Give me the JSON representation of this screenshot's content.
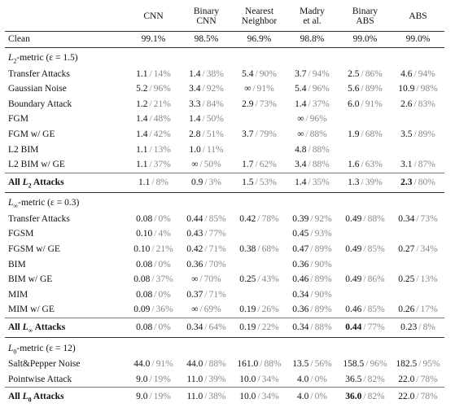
{
  "header": {
    "columns": [
      [
        "CNN"
      ],
      [
        "Binary",
        "CNN"
      ],
      [
        "Nearest",
        "Neighbor"
      ],
      [
        "Madry",
        "et al."
      ],
      [
        "Binary",
        "ABS"
      ],
      [
        "ABS"
      ]
    ]
  },
  "clean": {
    "label": "Clean",
    "values": [
      "99.1%",
      "98.5%",
      "96.9%",
      "98.8%",
      "99.0%",
      "99.0%"
    ]
  },
  "sections": [
    {
      "title": {
        "symbol": "L",
        "subscript": "2",
        "text": "-metric (ε = 1.5)"
      },
      "rows": [
        {
          "label": "Transfer Attacks",
          "cells": [
            {
              "v": "1.1",
              "p": "14%"
            },
            {
              "v": "1.4",
              "p": "38%"
            },
            {
              "v": "5.4",
              "p": "90%"
            },
            {
              "v": "3.7",
              "p": "94%"
            },
            {
              "v": "2.5",
              "p": "86%"
            },
            {
              "v": "4.6",
              "p": "94%"
            }
          ]
        },
        {
          "label": "Gaussian Noise",
          "cells": [
            {
              "v": "5.2",
              "p": "96%"
            },
            {
              "v": "3.4",
              "p": "92%"
            },
            {
              "v": "∞",
              "p": "91%"
            },
            {
              "v": "5.4",
              "p": "96%"
            },
            {
              "v": "5.6",
              "p": "89%"
            },
            {
              "v": "10.9",
              "p": "98%"
            }
          ]
        },
        {
          "label": "Boundary Attack",
          "cells": [
            {
              "v": "1.2",
              "p": "21%"
            },
            {
              "v": "3.3",
              "p": "84%"
            },
            {
              "v": "2.9",
              "p": "73%"
            },
            {
              "v": "1.4",
              "p": "37%"
            },
            {
              "v": "6.0",
              "p": "91%"
            },
            {
              "v": "2.6",
              "p": "83%"
            }
          ]
        },
        {
          "label": "FGM",
          "cells": [
            {
              "v": "1.4",
              "p": "48%"
            },
            {
              "v": "1.4",
              "p": "50%"
            },
            null,
            {
              "v": "∞",
              "p": "96%"
            },
            null,
            null
          ]
        },
        {
          "label": "FGM w/ GE",
          "cells": [
            {
              "v": "1.4",
              "p": "42%"
            },
            {
              "v": "2.8",
              "p": "51%"
            },
            {
              "v": "3.7",
              "p": "79%"
            },
            {
              "v": "∞",
              "p": "88%"
            },
            {
              "v": "1.9",
              "p": "68%"
            },
            {
              "v": "3.5",
              "p": "89%"
            }
          ]
        },
        {
          "label": "L2 BIM",
          "cells": [
            {
              "v": "1.1",
              "p": "13%"
            },
            {
              "v": "1.0",
              "p": "11%"
            },
            null,
            {
              "v": "4.8",
              "p": "88%"
            },
            null,
            null
          ]
        },
        {
          "label": "L2 BIM w/ GE",
          "cells": [
            {
              "v": "1.1",
              "p": "37%"
            },
            {
              "v": "∞",
              "p": "50%"
            },
            {
              "v": "1.7",
              "p": "62%"
            },
            {
              "v": "3.4",
              "p": "88%"
            },
            {
              "v": "1.6",
              "p": "63%"
            },
            {
              "v": "3.1",
              "p": "87%"
            }
          ]
        }
      ],
      "summary": {
        "label": {
          "prefix": "All",
          "symbol": "L",
          "subscript": "2",
          "suffix": "Attacks"
        },
        "cells": [
          {
            "v": "1.1",
            "p": "8%"
          },
          {
            "v": "0.9",
            "p": "3%"
          },
          {
            "v": "1.5",
            "p": "53%"
          },
          {
            "v": "1.4",
            "p": "35%"
          },
          {
            "v": "1.3",
            "p": "39%"
          },
          {
            "v": "2.3",
            "p": "80%",
            "bold": true
          }
        ]
      }
    },
    {
      "title": {
        "symbol": "L",
        "subscript": "∞",
        "text": "-metric (ε = 0.3)"
      },
      "rows": [
        {
          "label": "Transfer Attacks",
          "cells": [
            {
              "v": "0.08",
              "p": "0%"
            },
            {
              "v": "0.44",
              "p": "85%"
            },
            {
              "v": "0.42",
              "p": "78%"
            },
            {
              "v": "0.39",
              "p": "92%"
            },
            {
              "v": "0.49",
              "p": "88%"
            },
            {
              "v": "0.34",
              "p": "73%"
            }
          ]
        },
        {
          "label": "FGSM",
          "cells": [
            {
              "v": "0.10",
              "p": "4%"
            },
            {
              "v": "0.43",
              "p": "77%"
            },
            null,
            {
              "v": "0.45",
              "p": "93%"
            },
            null,
            null
          ]
        },
        {
          "label": "FGSM w/ GE",
          "cells": [
            {
              "v": "0.10",
              "p": "21%"
            },
            {
              "v": "0.42",
              "p": "71%"
            },
            {
              "v": "0.38",
              "p": "68%"
            },
            {
              "v": "0.47",
              "p": "89%"
            },
            {
              "v": "0.49",
              "p": "85%"
            },
            {
              "v": "0.27",
              "p": "34%"
            }
          ]
        },
        {
          "label": "BIM",
          "cells": [
            {
              "v": "0.08",
              "p": "0%"
            },
            {
              "v": "0.36",
              "p": "70%"
            },
            null,
            {
              "v": "0.36",
              "p": "90%"
            },
            null,
            null
          ]
        },
        {
          "label": "BIM w/ GE",
          "cells": [
            {
              "v": "0.08",
              "p": "37%"
            },
            {
              "v": "∞",
              "p": "70%"
            },
            {
              "v": "0.25",
              "p": "43%"
            },
            {
              "v": "0.46",
              "p": "89%"
            },
            {
              "v": "0.49",
              "p": "86%"
            },
            {
              "v": "0.25",
              "p": "13%"
            }
          ]
        },
        {
          "label": "MIM",
          "cells": [
            {
              "v": "0.08",
              "p": "0%"
            },
            {
              "v": "0.37",
              "p": "71%"
            },
            null,
            {
              "v": "0.34",
              "p": "90%"
            },
            null,
            null
          ]
        },
        {
          "label": "MIM w/ GE",
          "cells": [
            {
              "v": "0.09",
              "p": "36%"
            },
            {
              "v": "∞",
              "p": "69%"
            },
            {
              "v": "0.19",
              "p": "26%"
            },
            {
              "v": "0.36",
              "p": "89%"
            },
            {
              "v": "0.46",
              "p": "85%"
            },
            {
              "v": "0.26",
              "p": "17%"
            }
          ]
        }
      ],
      "summary": {
        "label": {
          "prefix": "All",
          "symbol": "L",
          "subscript": "∞",
          "suffix": "Attacks"
        },
        "cells": [
          {
            "v": "0.08",
            "p": "0%"
          },
          {
            "v": "0.34",
            "p": "64%"
          },
          {
            "v": "0.19",
            "p": "22%"
          },
          {
            "v": "0.34",
            "p": "88%"
          },
          {
            "v": "0.44",
            "p": "77%",
            "bold": true
          },
          {
            "v": "0.23",
            "p": "8%"
          }
        ]
      }
    },
    {
      "title": {
        "symbol": "L",
        "subscript": "0",
        "text": "-metric (ε = 12)"
      },
      "rows": [
        {
          "label": "Salt&Pepper Noise",
          "cells": [
            {
              "v": "44.0",
              "p": "91%"
            },
            {
              "v": "44.0",
              "p": "88%"
            },
            {
              "v": "161.0",
              "p": "88%"
            },
            {
              "v": "13.5",
              "p": "56%"
            },
            {
              "v": "158.5",
              "p": "96%"
            },
            {
              "v": "182.5",
              "p": "95%"
            }
          ]
        },
        {
          "label": "Pointwise Attack",
          "cells": [
            {
              "v": "9.0",
              "p": "19%"
            },
            {
              "v": "11.0",
              "p": "39%"
            },
            {
              "v": "10.0",
              "p": "34%"
            },
            {
              "v": "4.0",
              "p": "0%"
            },
            {
              "v": "36.5",
              "p": "82%"
            },
            {
              "v": "22.0",
              "p": "78%"
            }
          ]
        }
      ],
      "summary": {
        "label": {
          "prefix": "All",
          "symbol": "L",
          "subscript": "0",
          "suffix": "Attacks"
        },
        "cells": [
          {
            "v": "9.0",
            "p": "19%"
          },
          {
            "v": "11.0",
            "p": "38%"
          },
          {
            "v": "10.0",
            "p": "34%"
          },
          {
            "v": "4.0",
            "p": "0%"
          },
          {
            "v": "36.0",
            "p": "82%",
            "bold": true
          },
          {
            "v": "22.0",
            "p": "78%"
          }
        ]
      }
    }
  ]
}
